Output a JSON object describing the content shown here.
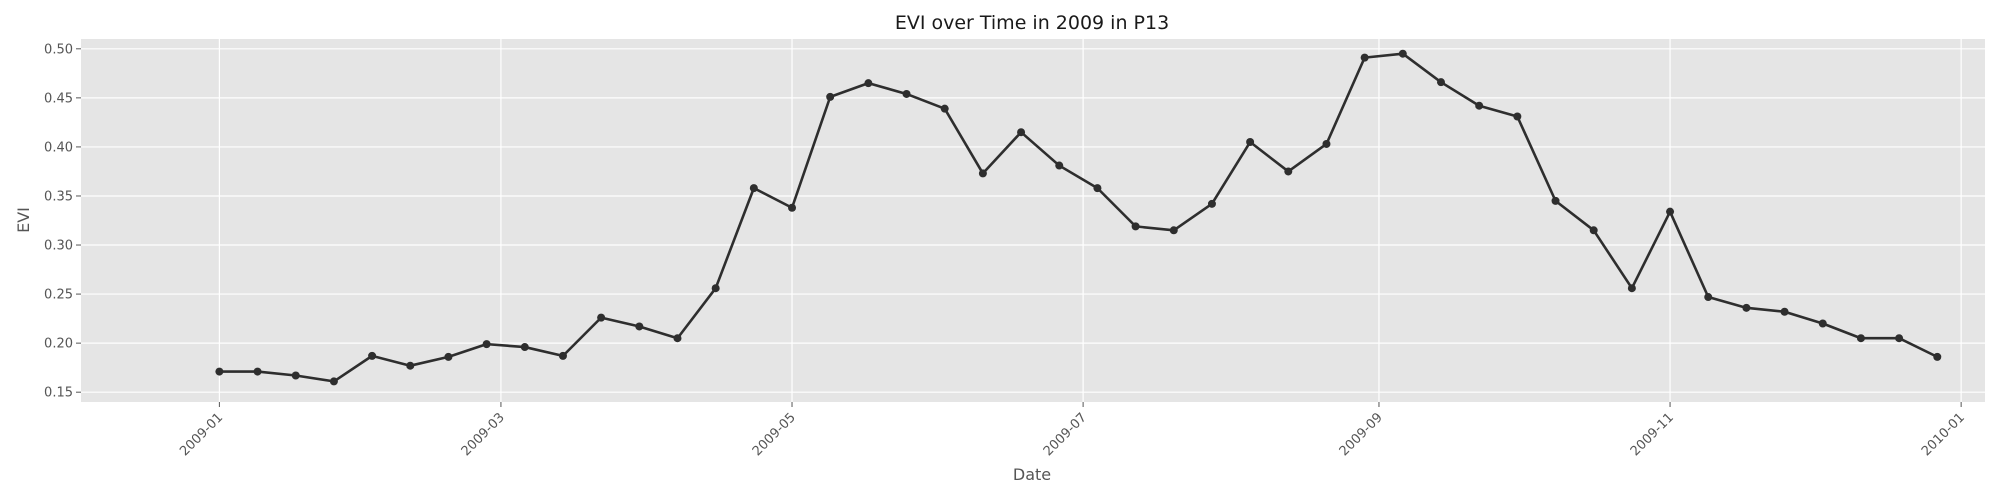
{
  "chart_data": {
    "type": "line",
    "title": "EVI over Time in 2009 in P13",
    "xlabel": "Date",
    "ylabel": "EVI",
    "x_axis": {
      "type": "date",
      "range": [
        "2008-12-03",
        "2010-01-06"
      ],
      "ticks": [
        "2009-01",
        "2009-03",
        "2009-05",
        "2009-07",
        "2009-09",
        "2009-11",
        "2010-01"
      ],
      "tick_dates": [
        "2009-01-01",
        "2009-03-01",
        "2009-05-01",
        "2009-07-01",
        "2009-09-01",
        "2009-11-01",
        "2010-01-01"
      ]
    },
    "y_axis": {
      "range": [
        0.14,
        0.51
      ],
      "ticks": [
        "0.15",
        "0.20",
        "0.25",
        "0.30",
        "0.35",
        "0.40",
        "0.45",
        "0.50"
      ],
      "tick_values": [
        0.15,
        0.2,
        0.25,
        0.3,
        0.35,
        0.4,
        0.45,
        0.5
      ]
    },
    "grid": true,
    "colors": {
      "plot_background": "#e5e5e5",
      "grid": "#ffffff",
      "line": "#2e2e2e",
      "marker": "#2e2e2e"
    },
    "series": [
      {
        "x": [
          "2009-01-01",
          "2009-01-09",
          "2009-01-17",
          "2009-01-25",
          "2009-02-02",
          "2009-02-10",
          "2009-02-18",
          "2009-02-26",
          "2009-03-06",
          "2009-03-14",
          "2009-03-22",
          "2009-03-30",
          "2009-04-07",
          "2009-04-15",
          "2009-04-23",
          "2009-05-01",
          "2009-05-09",
          "2009-05-17",
          "2009-05-25",
          "2009-06-02",
          "2009-06-10",
          "2009-06-18",
          "2009-06-26",
          "2009-07-04",
          "2009-07-12",
          "2009-07-20",
          "2009-07-28",
          "2009-08-05",
          "2009-08-13",
          "2009-08-21",
          "2009-08-29",
          "2009-09-06",
          "2009-09-14",
          "2009-09-22",
          "2009-09-30",
          "2009-10-08",
          "2009-10-16",
          "2009-10-24",
          "2009-11-01",
          "2009-11-09",
          "2009-11-17",
          "2009-11-25",
          "2009-12-03",
          "2009-12-11",
          "2009-12-19",
          "2009-12-27"
        ],
        "y": [
          0.171,
          0.171,
          0.167,
          0.161,
          0.187,
          0.177,
          0.186,
          0.199,
          0.196,
          0.187,
          0.226,
          0.217,
          0.205,
          0.256,
          0.358,
          0.338,
          0.451,
          0.465,
          0.454,
          0.439,
          0.373,
          0.415,
          0.381,
          0.358,
          0.319,
          0.315,
          0.342,
          0.405,
          0.375,
          0.403,
          0.491,
          0.495,
          0.466,
          0.442,
          0.431,
          0.345,
          0.315,
          0.256,
          0.334,
          0.247,
          0.236,
          0.232,
          0.22,
          0.205,
          0.205,
          0.186
        ]
      }
    ]
  }
}
